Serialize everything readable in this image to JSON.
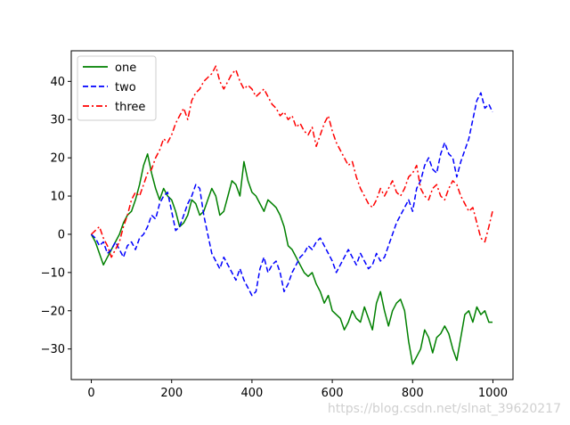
{
  "chart_data": {
    "type": "line",
    "title": "",
    "xlabel": "",
    "ylabel": "",
    "xlim": [
      -50,
      1050
    ],
    "ylim": [
      -38,
      48
    ],
    "xticks": [
      0,
      200,
      400,
      600,
      800,
      1000
    ],
    "yticks": [
      -30,
      -20,
      -10,
      0,
      10,
      20,
      30,
      40
    ],
    "legend_position": "top-left",
    "grid": false,
    "series": [
      {
        "name": "one",
        "color": "#008000",
        "style": "solid",
        "x": [
          0,
          10,
          20,
          30,
          40,
          50,
          60,
          70,
          80,
          90,
          100,
          110,
          120,
          130,
          140,
          150,
          160,
          170,
          180,
          190,
          200,
          210,
          220,
          230,
          240,
          250,
          260,
          270,
          280,
          290,
          300,
          310,
          320,
          330,
          340,
          350,
          360,
          370,
          380,
          390,
          400,
          410,
          420,
          430,
          440,
          450,
          460,
          470,
          480,
          490,
          500,
          510,
          520,
          530,
          540,
          550,
          560,
          570,
          580,
          590,
          600,
          610,
          620,
          630,
          640,
          650,
          660,
          670,
          680,
          690,
          700,
          710,
          720,
          730,
          740,
          750,
          760,
          770,
          780,
          790,
          800,
          810,
          820,
          830,
          840,
          850,
          860,
          870,
          880,
          890,
          900,
          910,
          920,
          930,
          940,
          950,
          960,
          970,
          980,
          990,
          999
        ],
        "y": [
          0,
          -2,
          -5,
          -8,
          -6,
          -4,
          -2,
          0,
          3,
          5,
          6,
          9,
          13,
          18,
          21,
          16,
          12,
          9,
          12,
          10,
          9,
          6,
          2,
          3,
          5,
          9,
          8,
          5,
          6,
          9,
          12,
          10,
          5,
          6,
          10,
          14,
          13,
          10,
          19,
          14,
          11,
          10,
          8,
          6,
          9,
          8,
          7,
          5,
          2,
          -3,
          -4,
          -6,
          -8,
          -10,
          -11,
          -10,
          -13,
          -15,
          -18,
          -16,
          -20,
          -21,
          -22,
          -25,
          -23,
          -20,
          -22,
          -23,
          -19,
          -22,
          -25,
          -18,
          -15,
          -20,
          -24,
          -20,
          -18,
          -17,
          -20,
          -28,
          -34,
          -32,
          -30,
          -25,
          -27,
          -31,
          -27,
          -26,
          -24,
          -26,
          -30,
          -33,
          -27,
          -21,
          -20,
          -23,
          -19,
          -21,
          -20,
          -23,
          -23
        ]
      },
      {
        "name": "two",
        "color": "#0000ff",
        "style": "dashed",
        "x": [
          0,
          10,
          20,
          30,
          40,
          50,
          60,
          70,
          80,
          90,
          100,
          110,
          120,
          130,
          140,
          150,
          160,
          170,
          180,
          190,
          200,
          210,
          220,
          230,
          240,
          250,
          260,
          270,
          280,
          290,
          300,
          310,
          320,
          330,
          340,
          350,
          360,
          370,
          380,
          390,
          400,
          410,
          420,
          430,
          440,
          450,
          460,
          470,
          480,
          490,
          500,
          510,
          520,
          530,
          540,
          550,
          560,
          570,
          580,
          590,
          600,
          610,
          620,
          630,
          640,
          650,
          660,
          670,
          680,
          690,
          700,
          710,
          720,
          730,
          740,
          750,
          760,
          770,
          780,
          790,
          800,
          810,
          820,
          830,
          840,
          850,
          860,
          870,
          880,
          890,
          900,
          910,
          920,
          930,
          940,
          950,
          960,
          970,
          980,
          990,
          999
        ],
        "y": [
          0,
          -1,
          -3,
          -2,
          -5,
          -4,
          -2,
          -4,
          -6,
          -3,
          -2,
          -4,
          -1,
          0,
          2,
          5,
          4,
          8,
          10,
          11,
          6,
          1,
          2,
          5,
          8,
          10,
          13,
          12,
          5,
          0,
          -5,
          -7,
          -9,
          -6,
          -8,
          -10,
          -12,
          -9,
          -12,
          -14,
          -16,
          -15,
          -9,
          -6,
          -10,
          -8,
          -7,
          -10,
          -15,
          -13,
          -10,
          -8,
          -6,
          -5,
          -3,
          -4,
          -2,
          -1,
          -3,
          -5,
          -7,
          -10,
          -8,
          -6,
          -4,
          -6,
          -8,
          -5,
          -7,
          -9,
          -8,
          -5,
          -7,
          -6,
          -3,
          0,
          3,
          5,
          7,
          9,
          6,
          12,
          14,
          18,
          20,
          17,
          16,
          21,
          24,
          21,
          20,
          15,
          19,
          22,
          25,
          30,
          35,
          37,
          33,
          34,
          32
        ]
      },
      {
        "name": "three",
        "color": "#ff0000",
        "style": "dashdot",
        "x": [
          0,
          10,
          20,
          30,
          40,
          50,
          60,
          70,
          80,
          90,
          100,
          110,
          120,
          130,
          140,
          150,
          160,
          170,
          180,
          190,
          200,
          210,
          220,
          230,
          240,
          250,
          260,
          270,
          280,
          290,
          300,
          310,
          320,
          330,
          340,
          350,
          360,
          370,
          380,
          390,
          400,
          410,
          420,
          430,
          440,
          450,
          460,
          470,
          480,
          490,
          500,
          510,
          520,
          530,
          540,
          550,
          560,
          570,
          580,
          590,
          600,
          610,
          620,
          630,
          640,
          650,
          660,
          670,
          680,
          690,
          700,
          710,
          720,
          730,
          740,
          750,
          760,
          770,
          780,
          790,
          800,
          810,
          820,
          830,
          840,
          850,
          860,
          870,
          880,
          890,
          900,
          910,
          920,
          930,
          940,
          950,
          960,
          970,
          980,
          990,
          999
        ],
        "y": [
          0,
          1,
          2,
          -1,
          -3,
          -6,
          -4,
          -2,
          2,
          5,
          9,
          11,
          10,
          13,
          16,
          17,
          20,
          22,
          25,
          24,
          26,
          29,
          31,
          33,
          30,
          35,
          37,
          38,
          40,
          41,
          42,
          44,
          40,
          38,
          40,
          42,
          43,
          40,
          38,
          39,
          38,
          36,
          37,
          38,
          36,
          34,
          33,
          31,
          32,
          30,
          31,
          28,
          29,
          27,
          26,
          28,
          23,
          26,
          29,
          31,
          27,
          24,
          22,
          20,
          18,
          19,
          15,
          12,
          10,
          8,
          7,
          9,
          12,
          10,
          12,
          14,
          11,
          10,
          12,
          15,
          16,
          18,
          12,
          10,
          9,
          12,
          13,
          10,
          9,
          12,
          14,
          13,
          10,
          8,
          6,
          7,
          3,
          -1,
          -2,
          2,
          6
        ]
      }
    ]
  },
  "watermark": "https://blog.csdn.net/slnat_39620217"
}
